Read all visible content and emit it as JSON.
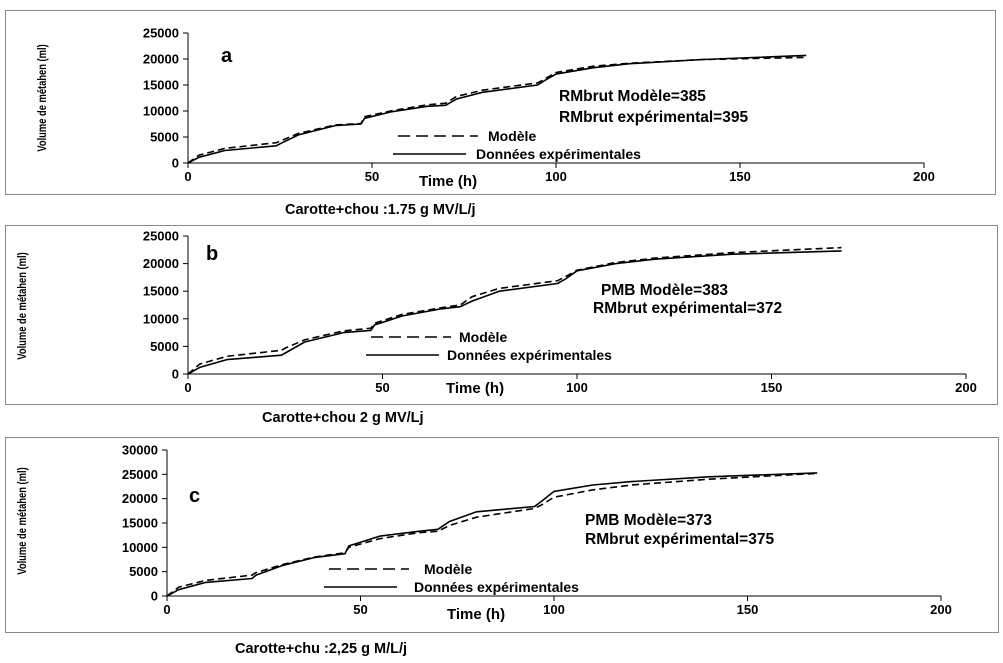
{
  "chart_data": [
    {
      "type": "line",
      "panel_letter": "a",
      "ylabel": "Volume de métahen (ml)",
      "xlabel": "Time (h)",
      "xlim": [
        0,
        200
      ],
      "ylim": [
        0,
        25000
      ],
      "xticks": [
        0,
        50,
        100,
        150,
        200
      ],
      "yticks": [
        0,
        5000,
        10000,
        15000,
        20000,
        25000
      ],
      "annotations": [
        "RMbrut Modèle=385",
        "RMbrut expérimental=395"
      ],
      "legend": {
        "position": "center",
        "entries": [
          "Modèle",
          "Données expérimentales"
        ]
      },
      "series": [
        {
          "name": "Modèle",
          "style": "dashed",
          "x": [
            0,
            3,
            10,
            24,
            25,
            30,
            40,
            47,
            48,
            55,
            65,
            70,
            73,
            80,
            95,
            97,
            100,
            110,
            120,
            140,
            168
          ],
          "y": [
            0,
            1500,
            2800,
            3900,
            4200,
            5700,
            7300,
            7600,
            8900,
            10000,
            11200,
            11500,
            12800,
            14000,
            15400,
            16200,
            17400,
            18600,
            19200,
            19900,
            20300
          ]
        },
        {
          "name": "Données expérimentales",
          "style": "solid",
          "x": [
            0,
            3,
            10,
            24,
            25,
            30,
            40,
            47,
            48,
            55,
            65,
            70,
            73,
            80,
            95,
            97,
            100,
            110,
            120,
            140,
            168
          ],
          "y": [
            0,
            1100,
            2400,
            3300,
            3700,
            5400,
            7200,
            7500,
            8600,
            9800,
            10900,
            11100,
            12300,
            13600,
            15000,
            15900,
            17100,
            18300,
            19100,
            19900,
            20700
          ]
        }
      ]
    },
    {
      "type": "line",
      "panel_letter": "b",
      "ylabel": "Volume de métahen (ml)",
      "xlabel": "Time (h)",
      "xlim": [
        0,
        200
      ],
      "ylim": [
        0,
        25000
      ],
      "xticks": [
        0,
        50,
        100,
        150,
        200
      ],
      "yticks": [
        0,
        5000,
        10000,
        15000,
        20000,
        25000
      ],
      "annotations": [
        "PMB Modèle=383",
        "RMbrut expérimental=372"
      ],
      "legend": {
        "position": "center",
        "entries": [
          "Modèle",
          "Données expérimentales"
        ]
      },
      "series": [
        {
          "name": "Modèle",
          "style": "dashed",
          "x": [
            0,
            3,
            10,
            24,
            25,
            30,
            40,
            47,
            48,
            55,
            65,
            70,
            73,
            80,
            95,
            97,
            100,
            110,
            120,
            140,
            168
          ],
          "y": [
            0,
            1800,
            3200,
            4300,
            4700,
            6200,
            7800,
            8300,
            9200,
            10800,
            12000,
            12500,
            14000,
            15500,
            16900,
            17600,
            18800,
            20200,
            21000,
            22000,
            22900
          ]
        },
        {
          "name": "Données expérimentales",
          "style": "solid",
          "x": [
            0,
            3,
            10,
            24,
            25,
            30,
            40,
            47,
            48,
            55,
            65,
            70,
            73,
            80,
            95,
            97,
            100,
            110,
            120,
            140,
            168
          ],
          "y": [
            0,
            1200,
            2600,
            3400,
            3800,
            5800,
            7500,
            7900,
            8900,
            10500,
            11800,
            12200,
            13200,
            15000,
            16400,
            17200,
            18700,
            20000,
            20800,
            21700,
            22300
          ]
        }
      ]
    },
    {
      "type": "line",
      "panel_letter": "c",
      "ylabel": "Volume de métahen (ml)",
      "xlabel": "Time (h)",
      "xlim": [
        0,
        200
      ],
      "ylim": [
        0,
        30000
      ],
      "xticks": [
        0,
        50,
        100,
        150,
        200
      ],
      "yticks": [
        0,
        5000,
        10000,
        15000,
        20000,
        25000,
        30000
      ],
      "annotations": [
        "PMB Modèle=373",
        "RMbrut expérimental=375"
      ],
      "legend": {
        "position": "center",
        "entries": [
          "Modèle",
          "Données expérimentales"
        ]
      },
      "series": [
        {
          "name": "Modèle",
          "style": "dashed",
          "x": [
            0,
            3,
            10,
            22,
            23,
            30,
            38,
            46,
            47,
            55,
            65,
            70,
            73,
            80,
            95,
            97,
            100,
            110,
            120,
            140,
            168
          ],
          "y": [
            0,
            1800,
            3200,
            4300,
            4800,
            6500,
            8000,
            8900,
            10000,
            11800,
            13000,
            13300,
            14500,
            16200,
            18000,
            18800,
            20300,
            21800,
            22800,
            24000,
            25200
          ]
        },
        {
          "name": "Données expérimentales",
          "style": "solid",
          "x": [
            0,
            3,
            10,
            22,
            23,
            30,
            38,
            46,
            47,
            55,
            65,
            70,
            73,
            80,
            95,
            97,
            100,
            110,
            120,
            140,
            168
          ],
          "y": [
            0,
            1300,
            2800,
            3600,
            4300,
            6300,
            7900,
            8700,
            10300,
            12300,
            13300,
            13700,
            15300,
            17300,
            18400,
            19600,
            21500,
            22800,
            23500,
            24500,
            25300
          ]
        }
      ]
    }
  ],
  "captions": [
    "Carotte+chou :1.75 g MV/L/j",
    "Carotte+chou 2 g MV/Lj",
    "Carotte+chu :2,25 g M/L/j"
  ]
}
